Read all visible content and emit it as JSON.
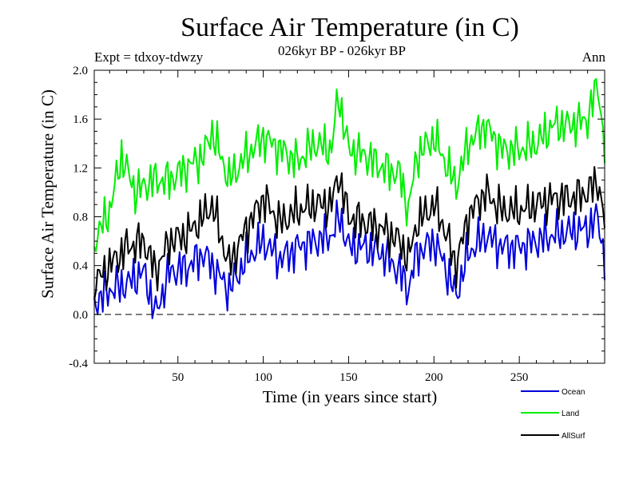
{
  "chart_data": {
    "type": "line",
    "title": "Surface Air Temperature (in C)",
    "subtitle": "026kyr BP - 026kyr BP",
    "experiment": "Expt = tdxoy-tdwzy",
    "season": "Ann",
    "xlabel": "Time (in years since start)",
    "ylabel": "Surface Air Temperature (in C)",
    "xlim": [
      1,
      300
    ],
    "ylim": [
      -0.4,
      2.0
    ],
    "xticks": [
      50,
      100,
      150,
      200,
      250
    ],
    "yticks": [
      "-0.4",
      "0.0",
      "0.4",
      "0.8",
      "1.2",
      "1.6",
      "2.0"
    ],
    "zero_line": {
      "y": 0.0,
      "style": "dashed"
    },
    "legend_position": "bottom-right",
    "series": [
      {
        "name": "Ocean",
        "color": "#0000dd",
        "x": [
          1,
          10,
          20,
          30,
          37,
          45,
          55,
          65,
          75,
          80,
          90,
          100,
          110,
          120,
          130,
          140,
          145,
          150,
          160,
          170,
          180,
          185,
          190,
          200,
          205,
          213,
          220,
          230,
          240,
          250,
          260,
          270,
          280,
          290,
          296,
          300
        ],
        "y": [
          0.1,
          0.2,
          0.25,
          0.35,
          0.0,
          0.35,
          0.38,
          0.5,
          0.3,
          0.2,
          0.45,
          0.6,
          0.45,
          0.55,
          0.6,
          0.65,
          0.8,
          0.55,
          0.55,
          0.5,
          0.35,
          0.2,
          0.5,
          0.6,
          0.45,
          0.15,
          0.5,
          0.65,
          0.55,
          0.55,
          0.6,
          0.65,
          0.68,
          0.7,
          0.8,
          0.45
        ]
      },
      {
        "name": "Land",
        "color": "#00ee00",
        "x": [
          1,
          10,
          17,
          25,
          35,
          45,
          55,
          65,
          70,
          80,
          90,
          100,
          110,
          120,
          130,
          140,
          144,
          150,
          160,
          170,
          180,
          185,
          190,
          200,
          205,
          213,
          220,
          230,
          240,
          250,
          260,
          270,
          280,
          290,
          296,
          300
        ],
        "y": [
          0.6,
          0.85,
          1.3,
          1.0,
          1.1,
          1.1,
          1.2,
          1.3,
          1.5,
          1.1,
          1.3,
          1.45,
          1.35,
          1.25,
          1.4,
          1.35,
          1.8,
          1.35,
          1.3,
          1.2,
          1.15,
          0.85,
          1.3,
          1.45,
          1.3,
          1.05,
          1.4,
          1.55,
          1.35,
          1.35,
          1.4,
          1.55,
          1.55,
          1.6,
          1.9,
          1.35
        ]
      },
      {
        "name": "AllSurf",
        "color": "#000000",
        "x": [
          1,
          10,
          20,
          30,
          37,
          45,
          55,
          65,
          70,
          80,
          90,
          100,
          110,
          120,
          130,
          140,
          144,
          150,
          160,
          170,
          180,
          185,
          190,
          200,
          205,
          213,
          220,
          230,
          240,
          250,
          260,
          270,
          280,
          290,
          296,
          300
        ],
        "y": [
          0.25,
          0.4,
          0.55,
          0.6,
          0.35,
          0.6,
          0.65,
          0.8,
          0.9,
          0.4,
          0.7,
          0.95,
          0.75,
          0.85,
          0.9,
          0.9,
          1.15,
          0.8,
          0.75,
          0.7,
          0.6,
          0.45,
          0.75,
          0.9,
          0.75,
          0.4,
          0.8,
          1.0,
          0.85,
          0.85,
          0.9,
          0.95,
          0.95,
          1.0,
          1.1,
          0.75
        ]
      }
    ]
  }
}
